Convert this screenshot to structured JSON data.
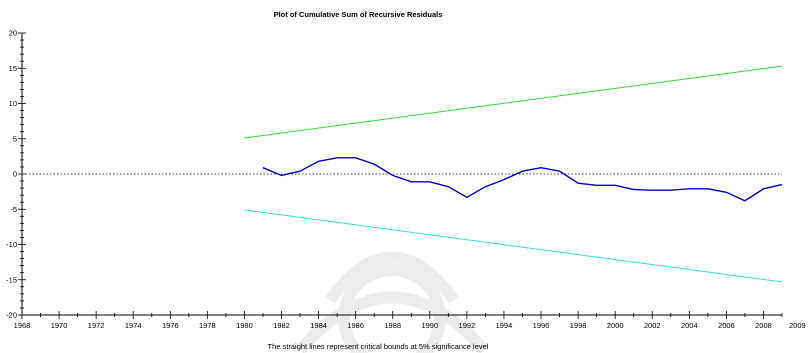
{
  "chart_data": {
    "type": "line",
    "title": "Plot of Cumulative Sum of Recursive Residuals",
    "note": "The straight lines represent critical bounds at 5% significance level",
    "xlim": [
      1968,
      2009
    ],
    "ylim": [
      -20,
      20
    ],
    "x_tick_labels": [
      "1968",
      "1970",
      "1972",
      "1974",
      "1976",
      "1978",
      "1980",
      "1982",
      "1984",
      "1986",
      "1988",
      "1990",
      "1992",
      "1994",
      "1996",
      "1998",
      "2000",
      "2002",
      "2004",
      "2006",
      "2008",
      "2009"
    ],
    "y_tick_labels": [
      "20",
      "15",
      "10",
      "5",
      "0",
      "-5",
      "-10",
      "-15",
      "-20"
    ],
    "y_tick_values": [
      20,
      15,
      10,
      5,
      0,
      -5,
      -10,
      -15,
      -20
    ],
    "grid": false,
    "zero_line": {
      "y": 0,
      "style": "dotted",
      "color": "#444444"
    },
    "series": [
      {
        "color": "#0000cc",
        "x": [
          1981,
          1982,
          1983,
          1984,
          1985,
          1986,
          1987,
          1988,
          1989,
          1990,
          1991,
          1992,
          1993,
          1994,
          1995,
          1996,
          1997,
          1998,
          1999,
          2000,
          2001,
          2002,
          2003,
          2004,
          2005,
          2006,
          2007,
          2008,
          2009
        ],
        "y": [
          0.9,
          -0.2,
          0.4,
          1.8,
          2.3,
          2.3,
          1.4,
          -0.2,
          -1.1,
          -1.1,
          -1.8,
          -3.3,
          -1.8,
          -0.8,
          0.4,
          0.9,
          0.4,
          -1.3,
          -1.6,
          -1.6,
          -2.2,
          -2.3,
          -2.3,
          -2.1,
          -2.1,
          -2.6,
          -3.8,
          -2.1,
          -1.5
        ]
      },
      {
        "color": "#33dd33",
        "x": [
          1980,
          2009
        ],
        "y": [
          5.1,
          15.3
        ]
      },
      {
        "color": "#33dddd",
        "x": [
          1980,
          2009
        ],
        "y": [
          -5.1,
          -15.3
        ]
      }
    ]
  }
}
